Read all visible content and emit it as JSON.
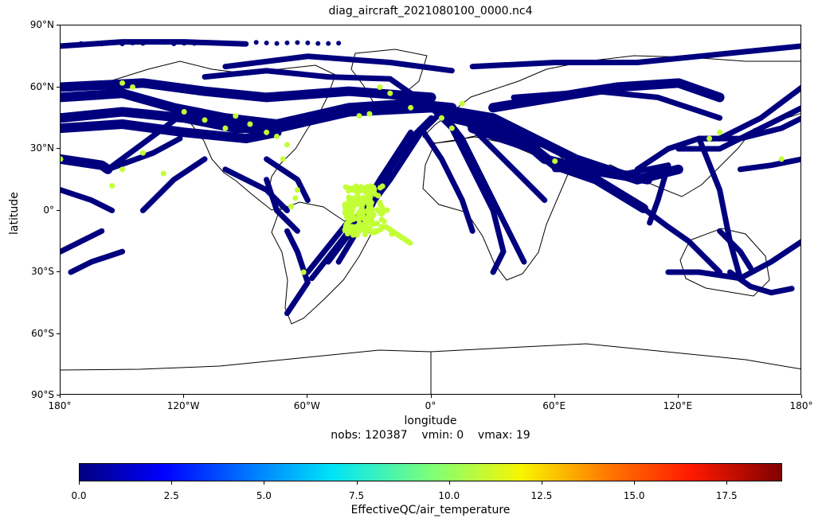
{
  "title": "diag_aircraft_2021080100_0000.nc4",
  "xlabel": "longitude",
  "ylabel": "latitude",
  "stats": {
    "nobs_label": "nobs: 120387",
    "vmin_label": "vmin: 0",
    "vmax_label": "vmax: 19"
  },
  "colorbar": {
    "label": "EffectiveQC/air_temperature",
    "min": 0,
    "max": 19,
    "ticks": [
      "0.0",
      "2.5",
      "5.0",
      "7.5",
      "10.0",
      "12.5",
      "15.0",
      "17.5"
    ],
    "colormap": "jet"
  },
  "chart_data": {
    "type": "scatter",
    "projection": "PlateCarree",
    "xlim": [
      -180,
      180
    ],
    "ylim": [
      -90,
      90
    ],
    "x_ticks": [
      {
        "value": -180,
        "label": "180°"
      },
      {
        "value": -120,
        "label": "120°W"
      },
      {
        "value": -60,
        "label": "60°W"
      },
      {
        "value": 0,
        "label": "0°"
      },
      {
        "value": 60,
        "label": "60°E"
      },
      {
        "value": 120,
        "label": "120°E"
      },
      {
        "value": 180,
        "label": "180°"
      }
    ],
    "y_ticks": [
      {
        "value": 90,
        "label": "90°N"
      },
      {
        "value": 60,
        "label": "60°N"
      },
      {
        "value": 30,
        "label": "30°N"
      },
      {
        "value": 0,
        "label": "0°"
      },
      {
        "value": -30,
        "label": "30°S"
      },
      {
        "value": -60,
        "label": "60°S"
      },
      {
        "value": -90,
        "label": "90°S"
      }
    ],
    "low_color": "#00007f",
    "high_color": "#c2ff35",
    "flight_tracks_qc0": [
      [
        [
          -180,
          55
        ],
        [
          -150,
          57
        ],
        [
          -125,
          50
        ],
        [
          -100,
          45
        ],
        [
          -75,
          42
        ],
        [
          -40,
          50
        ],
        [
          -10,
          52
        ],
        [
          10,
          50
        ]
      ],
      [
        [
          -180,
          45
        ],
        [
          -150,
          48
        ],
        [
          -120,
          45
        ],
        [
          -95,
          40
        ],
        [
          -75,
          40
        ],
        [
          -40,
          48
        ],
        [
          0,
          50
        ]
      ],
      [
        [
          -180,
          60
        ],
        [
          -140,
          62
        ],
        [
          -110,
          58
        ],
        [
          -80,
          55
        ],
        [
          -40,
          58
        ],
        [
          0,
          55
        ]
      ],
      [
        [
          -180,
          40
        ],
        [
          -150,
          42
        ],
        [
          -120,
          38
        ],
        [
          -90,
          35
        ],
        [
          -75,
          38
        ]
      ],
      [
        [
          -180,
          25
        ],
        [
          -160,
          22
        ],
        [
          -157,
          20
        ]
      ],
      [
        [
          -157,
          20
        ],
        [
          -135,
          28
        ],
        [
          -122,
          35
        ]
      ],
      [
        [
          -157,
          20
        ],
        [
          -130,
          40
        ],
        [
          -122,
          46
        ]
      ],
      [
        [
          -180,
          10
        ],
        [
          -165,
          5
        ],
        [
          -155,
          0
        ]
      ],
      [
        [
          -180,
          -20
        ],
        [
          -170,
          -15
        ],
        [
          -160,
          -10
        ]
      ],
      [
        [
          -175,
          -30
        ],
        [
          -165,
          -25
        ],
        [
          -150,
          -20
        ]
      ],
      [
        [
          -140,
          0
        ],
        [
          -125,
          15
        ],
        [
          -110,
          25
        ]
      ],
      [
        [
          -100,
          20
        ],
        [
          -80,
          10
        ],
        [
          -70,
          0
        ]
      ],
      [
        [
          -80,
          25
        ],
        [
          -65,
          15
        ],
        [
          -60,
          5
        ]
      ],
      [
        [
          -70,
          -10
        ],
        [
          -65,
          -20
        ],
        [
          -60,
          -35
        ],
        [
          -70,
          -50
        ]
      ],
      [
        [
          -80,
          15
        ],
        [
          -75,
          0
        ],
        [
          -65,
          -10
        ]
      ],
      [
        [
          -45,
          -25
        ],
        [
          -30,
          0
        ],
        [
          -20,
          20
        ],
        [
          -10,
          35
        ],
        [
          0,
          45
        ]
      ],
      [
        [
          -50,
          -25
        ],
        [
          -35,
          -5
        ],
        [
          -20,
          15
        ],
        [
          -5,
          38
        ],
        [
          5,
          48
        ]
      ],
      [
        [
          -58,
          -33
        ],
        [
          -40,
          -10
        ],
        [
          -25,
          15
        ],
        [
          -10,
          38
        ]
      ],
      [
        [
          -40,
          -5
        ],
        [
          -60,
          -30
        ]
      ],
      [
        [
          0,
          50
        ],
        [
          10,
          40
        ],
        [
          20,
          20
        ],
        [
          30,
          0
        ],
        [
          35,
          -20
        ],
        [
          30,
          -30
        ]
      ],
      [
        [
          5,
          48
        ],
        [
          15,
          35
        ],
        [
          25,
          15
        ],
        [
          35,
          -5
        ],
        [
          45,
          -25
        ]
      ],
      [
        [
          10,
          50
        ],
        [
          25,
          35
        ],
        [
          40,
          20
        ],
        [
          55,
          5
        ]
      ],
      [
        [
          -5,
          40
        ],
        [
          5,
          25
        ],
        [
          15,
          5
        ],
        [
          20,
          -10
        ]
      ],
      [
        [
          0,
          50
        ],
        [
          30,
          45
        ],
        [
          50,
          35
        ],
        [
          70,
          25
        ],
        [
          100,
          15
        ],
        [
          120,
          20
        ]
      ],
      [
        [
          10,
          45
        ],
        [
          40,
          38
        ],
        [
          55,
          25
        ],
        [
          75,
          20
        ],
        [
          105,
          15
        ]
      ],
      [
        [
          20,
          40
        ],
        [
          50,
          30
        ],
        [
          60,
          22
        ],
        [
          80,
          15
        ],
        [
          103,
          1
        ]
      ],
      [
        [
          30,
          50
        ],
        [
          60,
          55
        ],
        [
          90,
          60
        ],
        [
          120,
          62
        ],
        [
          140,
          55
        ]
      ],
      [
        [
          40,
          55
        ],
        [
          80,
          58
        ],
        [
          110,
          55
        ],
        [
          140,
          45
        ]
      ],
      [
        [
          60,
          20
        ],
        [
          80,
          20
        ],
        [
          95,
          18
        ],
        [
          115,
          22
        ]
      ],
      [
        [
          103,
          1
        ],
        [
          115,
          -8
        ],
        [
          125,
          -15
        ],
        [
          140,
          -30
        ]
      ],
      [
        [
          100,
          20
        ],
        [
          115,
          30
        ],
        [
          130,
          35
        ],
        [
          140,
          35
        ]
      ],
      [
        [
          115,
          22
        ],
        [
          110,
          5
        ],
        [
          106,
          -6
        ]
      ],
      [
        [
          130,
          35
        ],
        [
          140,
          10
        ],
        [
          145,
          -15
        ],
        [
          150,
          -33
        ]
      ],
      [
        [
          140,
          35
        ],
        [
          160,
          45
        ],
        [
          180,
          60
        ]
      ],
      [
        [
          130,
          35
        ],
        [
          150,
          35
        ],
        [
          170,
          40
        ],
        [
          180,
          45
        ]
      ],
      [
        [
          120,
          30
        ],
        [
          140,
          30
        ],
        [
          160,
          40
        ],
        [
          180,
          50
        ]
      ],
      [
        [
          145,
          -30
        ],
        [
          155,
          -37
        ],
        [
          165,
          -40
        ],
        [
          175,
          -38
        ]
      ],
      [
        [
          115,
          -30
        ],
        [
          130,
          -30
        ],
        [
          150,
          -33
        ]
      ],
      [
        [
          150,
          -33
        ],
        [
          165,
          -25
        ],
        [
          180,
          -15
        ]
      ],
      [
        [
          140,
          -10
        ],
        [
          150,
          -20
        ],
        [
          155,
          -28
        ]
      ],
      [
        [
          180,
          25
        ],
        [
          165,
          22
        ],
        [
          150,
          20
        ]
      ],
      [
        [
          0,
          50
        ],
        [
          -20,
          64
        ],
        [
          -50,
          65
        ],
        [
          -80,
          68
        ],
        [
          -110,
          65
        ]
      ],
      [
        [
          -100,
          70
        ],
        [
          -60,
          75
        ],
        [
          -20,
          72
        ],
        [
          10,
          68
        ]
      ],
      [
        [
          -180,
          80
        ],
        [
          -150,
          82
        ],
        [
          -120,
          82
        ],
        [
          -90,
          81
        ]
      ],
      [
        [
          20,
          70
        ],
        [
          60,
          72
        ],
        [
          100,
          72
        ],
        [
          140,
          76
        ],
        [
          180,
          80
        ]
      ]
    ],
    "flagged_cluster_high_qc": {
      "center_lon": -30,
      "center_lat": 3,
      "lon_range": [
        -42,
        -15
      ],
      "lat_range": [
        -12,
        12
      ]
    }
  }
}
